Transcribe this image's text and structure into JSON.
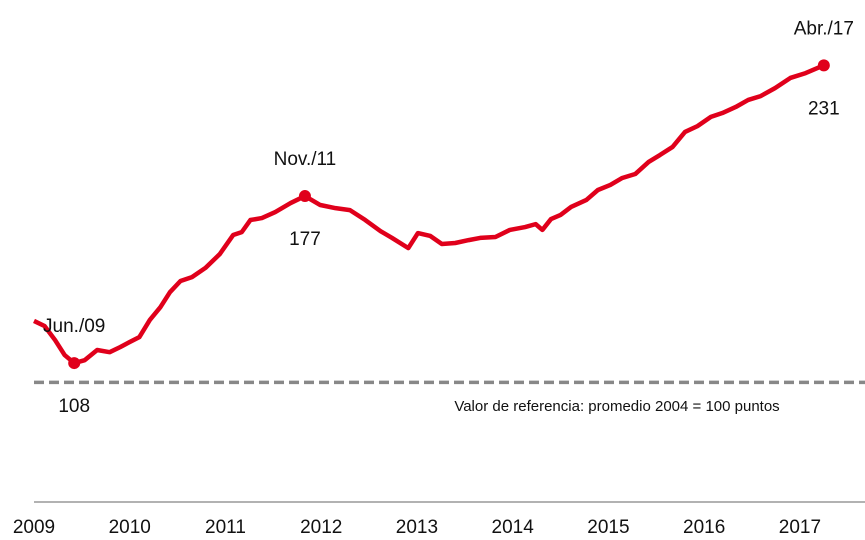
{
  "chart_data": {
    "type": "line",
    "x": [
      2009.0,
      2009.11,
      2009.22,
      2009.32,
      2009.42,
      2009.53,
      2009.66,
      2009.79,
      2009.9,
      2010.0,
      2010.1,
      2010.21,
      2010.32,
      2010.42,
      2010.53,
      2010.65,
      2010.79,
      2010.94,
      2011.08,
      2011.17,
      2011.26,
      2011.38,
      2011.52,
      2011.68,
      2011.83,
      2011.99,
      2012.15,
      2012.3,
      2012.46,
      2012.62,
      2012.74,
      2012.91,
      2013.01,
      2013.14,
      2013.26,
      2013.4,
      2013.54,
      2013.66,
      2013.82,
      2013.97,
      2014.13,
      2014.24,
      2014.31,
      2014.4,
      2014.5,
      2014.61,
      2014.77,
      2014.89,
      2015.02,
      2015.14,
      2015.28,
      2015.42,
      2015.54,
      2015.67,
      2015.8,
      2015.93,
      2016.07,
      2016.19,
      2016.33,
      2016.46,
      2016.59,
      2016.74,
      2016.9,
      2017.06,
      2017.25
    ],
    "series": [
      {
        "color": "#e0001b",
        "values": [
          125.4,
          123.3,
          117.5,
          111.3,
          108,
          109.2,
          113.4,
          112.5,
          114.6,
          116.7,
          118.7,
          125.8,
          131.1,
          137.3,
          141.9,
          143.5,
          147.3,
          153.0,
          160.9,
          162.1,
          167.1,
          167.9,
          170.4,
          174.1,
          177,
          173.3,
          172.0,
          171.2,
          167.1,
          162.5,
          159.7,
          155.5,
          161.7,
          160.5,
          157.2,
          157.6,
          158.8,
          159.7,
          160.1,
          163.0,
          164.2,
          165.4,
          163.0,
          167.5,
          169.2,
          172.5,
          175.4,
          179.5,
          181.6,
          184.4,
          186.1,
          191.1,
          194.0,
          197.3,
          203.5,
          205.9,
          209.7,
          211.3,
          213.8,
          216.7,
          218.3,
          221.6,
          225.8,
          227.8,
          231
        ]
      }
    ],
    "xlim": [
      2009,
      2017.68
    ],
    "xticks": [
      2009,
      2010,
      2011,
      2012,
      2013,
      2014,
      2015,
      2016,
      2017
    ],
    "ylim": [
      50.6,
      258
    ],
    "reference": {
      "value": 100,
      "label": "Valor de referencia:   promedio 2004  = 100  puntos"
    },
    "annotations": [
      {
        "label": "Jun./09",
        "x": 2009.42,
        "value": 108
      },
      {
        "label": "Nov./11",
        "x": 2011.83,
        "value": 177
      },
      {
        "label": "Abr./17",
        "x": 2017.25,
        "value": 231
      }
    ]
  }
}
